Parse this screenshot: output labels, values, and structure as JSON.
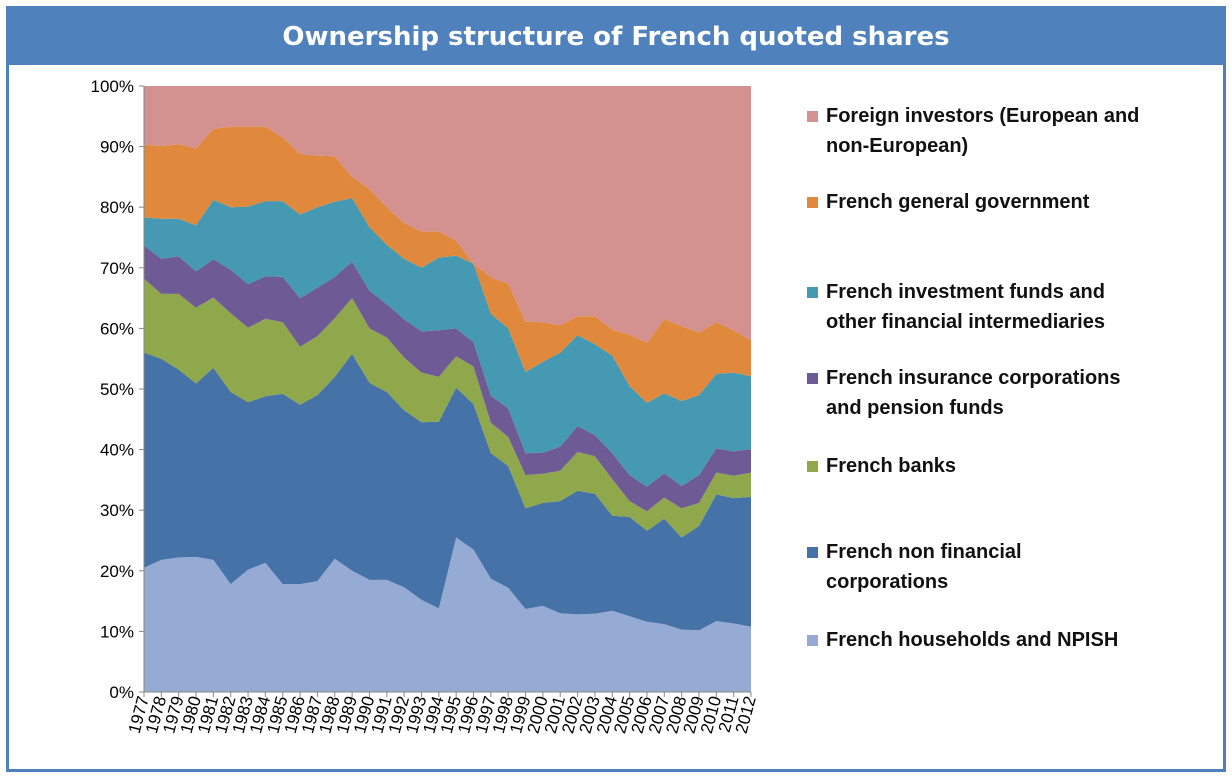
{
  "chart_data": {
    "type": "area",
    "stacked": true,
    "percent": true,
    "title": "Ownership structure of French quoted shares",
    "xlabel": "",
    "ylabel": "",
    "ylim": [
      0,
      100
    ],
    "yticks": [
      "0%",
      "10%",
      "20%",
      "30%",
      "40%",
      "50%",
      "60%",
      "70%",
      "80%",
      "90%",
      "100%"
    ],
    "x": [
      "1977",
      "1978",
      "1979",
      "1980",
      "1981",
      "1982",
      "1983",
      "1984",
      "1985",
      "1986",
      "1987",
      "1988",
      "1989",
      "1990",
      "1991",
      "1992",
      "1993",
      "1994",
      "1995",
      "1996",
      "1997",
      "1998",
      "1999",
      "2000",
      "2001",
      "2002",
      "2003",
      "2004",
      "2005",
      "2006",
      "2007",
      "2008",
      "2009",
      "2010",
      "2011",
      "2012"
    ],
    "series": [
      {
        "name": "French households and NPISH",
        "color": "#95abd3",
        "legend": [
          "French households and NPISH"
        ],
        "values": [
          20.5,
          21.8,
          22.2,
          22.3,
          21.8,
          17.8,
          20.2,
          21.3,
          17.8,
          17.8,
          18.3,
          22.0,
          20.0,
          18.5,
          18.5,
          17.3,
          15.2,
          13.8,
          25.5,
          23.5,
          18.7,
          17.2,
          13.7,
          14.2,
          13.0,
          12.8,
          12.9,
          13.4,
          12.5,
          11.6,
          11.2,
          10.3,
          10.2,
          11.7,
          11.3,
          10.8
        ]
      },
      {
        "name": "French non financial corporations",
        "color": "#4572a7",
        "legend": [
          "French non financial",
          "corporations"
        ],
        "values": [
          35.5,
          33.2,
          31.0,
          28.6,
          31.7,
          31.7,
          27.6,
          27.5,
          31.4,
          29.6,
          30.7,
          30.0,
          35.8,
          32.5,
          31.0,
          29.2,
          29.3,
          30.8,
          24.7,
          24.0,
          20.7,
          20.1,
          16.6,
          17.0,
          18.5,
          20.4,
          19.8,
          15.7,
          16.4,
          15.0,
          17.4,
          15.2,
          17.2,
          20.9,
          20.7,
          21.4
        ]
      },
      {
        "name": "French banks",
        "color": "#8ea84b",
        "legend": [
          "French banks"
        ],
        "values": [
          12.2,
          10.7,
          12.5,
          12.5,
          11.6,
          13.0,
          12.3,
          12.8,
          11.8,
          9.6,
          9.7,
          9.7,
          9.2,
          9.0,
          9.0,
          8.7,
          8.2,
          7.4,
          5.2,
          6.2,
          5.0,
          4.8,
          5.5,
          4.8,
          5.0,
          6.4,
          6.2,
          6.0,
          2.6,
          3.2,
          3.5,
          4.8,
          3.8,
          3.6,
          3.7,
          4.0
        ]
      },
      {
        "name": "French insurance corporations and pension funds",
        "color": "#6e5a94",
        "legend": [
          "French insurance corporations",
          "and pension funds"
        ],
        "values": [
          5.5,
          5.8,
          6.2,
          6.0,
          6.3,
          7.2,
          7.2,
          7.0,
          7.5,
          8.0,
          8.0,
          6.8,
          6.0,
          6.2,
          5.5,
          6.3,
          6.8,
          7.7,
          4.6,
          4.0,
          4.5,
          4.7,
          3.6,
          3.5,
          4.0,
          4.3,
          3.5,
          4.3,
          4.3,
          4.1,
          4.0,
          3.7,
          4.6,
          4.0,
          4.0,
          3.9
        ]
      },
      {
        "name": "French investment funds and other financial intermediaries",
        "color": "#4599b2",
        "legend": [
          "French investment funds and",
          "other financial intermediaries"
        ],
        "values": [
          4.6,
          6.6,
          6.2,
          7.6,
          9.8,
          10.3,
          12.8,
          12.4,
          12.5,
          13.8,
          13.3,
          12.4,
          10.5,
          10.5,
          9.8,
          10.0,
          10.5,
          12.0,
          12.0,
          13.0,
          13.5,
          13.2,
          13.4,
          15.0,
          15.5,
          15.0,
          15.0,
          16.1,
          14.7,
          13.8,
          13.2,
          14.0,
          13.2,
          12.3,
          13.0,
          12.0
        ]
      },
      {
        "name": "French general government",
        "color": "#e0893c",
        "legend": [
          "French general government"
        ],
        "values": [
          12.0,
          12.0,
          12.3,
          12.7,
          11.7,
          13.3,
          13.2,
          12.3,
          10.5,
          10.0,
          8.5,
          7.5,
          3.5,
          6.3,
          6.2,
          5.9,
          6.0,
          4.3,
          2.5,
          0.0,
          6.0,
          7.4,
          8.3,
          6.5,
          4.5,
          3.1,
          4.6,
          4.3,
          8.5,
          9.9,
          12.2,
          12.4,
          10.3,
          8.5,
          7.0,
          5.9
        ]
      },
      {
        "name": "Foreign investors (European and non-European)",
        "color": "#d39190",
        "legend": [
          "Foreign investors (European and",
          "non-European)"
        ],
        "values": [
          9.7,
          9.9,
          9.6,
          10.3,
          7.1,
          6.7,
          6.7,
          6.7,
          8.5,
          11.2,
          11.5,
          11.6,
          15.0,
          17.0,
          20.0,
          22.6,
          24.0,
          24.0,
          25.5,
          29.3,
          31.6,
          32.6,
          38.9,
          39.0,
          39.5,
          38.0,
          38.0,
          40.2,
          41.0,
          42.4,
          38.5,
          39.6,
          40.7,
          39.0,
          40.3,
          42.0
        ]
      }
    ]
  }
}
